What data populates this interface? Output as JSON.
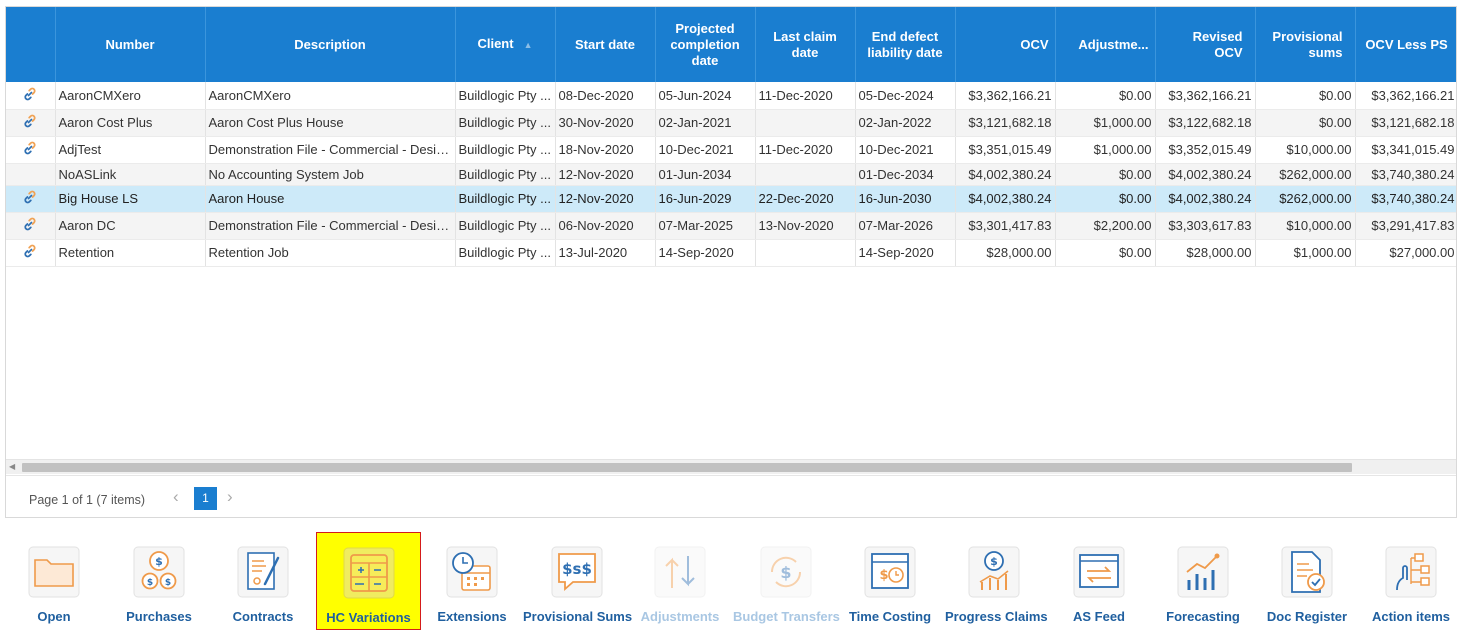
{
  "grid": {
    "columns": [
      "",
      "Number",
      "Description",
      "Client",
      "Start date",
      "Projected completion date",
      "Last claim date",
      "End defect liability date",
      "OCV",
      "Adjustme...",
      "Revised OCV",
      "Provisional sums",
      "OCV Less PS"
    ],
    "rows": [
      {
        "link": true,
        "number": "AaronCMXero",
        "description": "AaronCMXero",
        "client": "Buildlogic Pty ...",
        "start": "08-Dec-2020",
        "projected": "05-Jun-2024",
        "last_claim": "11-Dec-2020",
        "end_defect": "05-Dec-2024",
        "ocv": "$3,362,166.21",
        "adjustments": "$0.00",
        "revised_ocv": "$3,362,166.21",
        "provisional": "$0.00",
        "ocv_less_ps": "$3,362,166.21"
      },
      {
        "link": true,
        "number": "Aaron Cost Plus",
        "description": "Aaron Cost Plus House",
        "client": "Buildlogic Pty ...",
        "start": "30-Nov-2020",
        "projected": "02-Jan-2021",
        "last_claim": "",
        "end_defect": "02-Jan-2022",
        "ocv": "$3,121,682.18",
        "adjustments": "$1,000.00",
        "revised_ocv": "$3,122,682.18",
        "provisional": "$0.00",
        "ocv_less_ps": "$3,121,682.18"
      },
      {
        "link": true,
        "number": "AdjTest",
        "description": "Demonstration File - Commercial - Desig...",
        "client": "Buildlogic Pty ...",
        "start": "18-Nov-2020",
        "projected": "10-Dec-2021",
        "last_claim": "11-Dec-2020",
        "end_defect": "10-Dec-2021",
        "ocv": "$3,351,015.49",
        "adjustments": "$1,000.00",
        "revised_ocv": "$3,352,015.49",
        "provisional": "$10,000.00",
        "ocv_less_ps": "$3,341,015.49"
      },
      {
        "link": false,
        "number": "NoASLink",
        "description": "No Accounting System Job",
        "client": "Buildlogic Pty ...",
        "start": "12-Nov-2020",
        "projected": "01-Jun-2034",
        "last_claim": "",
        "end_defect": "01-Dec-2034",
        "ocv": "$4,002,380.24",
        "adjustments": "$0.00",
        "revised_ocv": "$4,002,380.24",
        "provisional": "$262,000.00",
        "ocv_less_ps": "$3,740,380.24"
      },
      {
        "link": true,
        "number": "Big House LS",
        "description": "Aaron House",
        "client": "Buildlogic Pty ...",
        "start": "12-Nov-2020",
        "projected": "16-Jun-2029",
        "last_claim": "22-Dec-2020",
        "end_defect": "16-Jun-2030",
        "ocv": "$4,002,380.24",
        "adjustments": "$0.00",
        "revised_ocv": "$4,002,380.24",
        "provisional": "$262,000.00",
        "ocv_less_ps": "$3,740,380.24"
      },
      {
        "link": true,
        "number": "Aaron DC",
        "description": "Demonstration File - Commercial - Desig...",
        "client": "Buildlogic Pty ...",
        "start": "06-Nov-2020",
        "projected": "07-Mar-2025",
        "last_claim": "13-Nov-2020",
        "end_defect": "07-Mar-2026",
        "ocv": "$3,301,417.83",
        "adjustments": "$2,200.00",
        "revised_ocv": "$3,303,617.83",
        "provisional": "$10,000.00",
        "ocv_less_ps": "$3,291,417.83"
      },
      {
        "link": true,
        "number": "Retention",
        "description": "Retention Job",
        "client": "Buildlogic Pty ...",
        "start": "13-Jul-2020",
        "projected": "14-Sep-2020",
        "last_claim": "",
        "end_defect": "14-Sep-2020",
        "ocv": "$28,000.00",
        "adjustments": "$0.00",
        "revised_ocv": "$28,000.00",
        "provisional": "$1,000.00",
        "ocv_less_ps": "$27,000.00"
      }
    ],
    "selected_index": 4
  },
  "pager": {
    "info": "Page 1 of 1 (7 items)",
    "prev": "‹",
    "current_page": "1",
    "next": "›"
  },
  "toolbar": {
    "items": [
      {
        "label": "Open",
        "icon": "folder-icon",
        "disabled": false,
        "active": false
      },
      {
        "label": "Purchases",
        "icon": "coins-icon",
        "disabled": false,
        "active": false
      },
      {
        "label": "Contracts",
        "icon": "contract-icon",
        "disabled": false,
        "active": false
      },
      {
        "label": "HC Variations",
        "icon": "variations-grid-icon",
        "disabled": false,
        "active": true
      },
      {
        "label": "Extensions",
        "icon": "clock-calendar-icon",
        "disabled": false,
        "active": false
      },
      {
        "label": "Provisional Sums",
        "icon": "dollar-chat-icon",
        "disabled": false,
        "active": false
      },
      {
        "label": "Adjustments",
        "icon": "up-down-arrows-icon",
        "disabled": true,
        "active": false
      },
      {
        "label": "Budget Transfers",
        "icon": "dollar-cycle-icon",
        "disabled": true,
        "active": false
      },
      {
        "label": "Time Costing",
        "icon": "time-costing-icon",
        "disabled": false,
        "active": false
      },
      {
        "label": "Progress Claims",
        "icon": "progress-claims-icon",
        "disabled": false,
        "active": false
      },
      {
        "label": "AS Feed",
        "icon": "as-feed-icon",
        "disabled": false,
        "active": false
      },
      {
        "label": "Forecasting",
        "icon": "forecast-chart-icon",
        "disabled": false,
        "active": false
      },
      {
        "label": "Doc Register",
        "icon": "doc-register-icon",
        "disabled": false,
        "active": false
      },
      {
        "label": "Action items",
        "icon": "action-items-icon",
        "disabled": false,
        "active": false
      }
    ]
  },
  "colors": {
    "header_bg": "#1a7ed0",
    "selected_row": "#cdeaf9",
    "toolbar_label": "#1f5f9f",
    "active_highlight": "#ffff00",
    "active_border": "#d41b1b",
    "icon_orange": "#f0a254",
    "icon_blue": "#2e6fb2"
  }
}
